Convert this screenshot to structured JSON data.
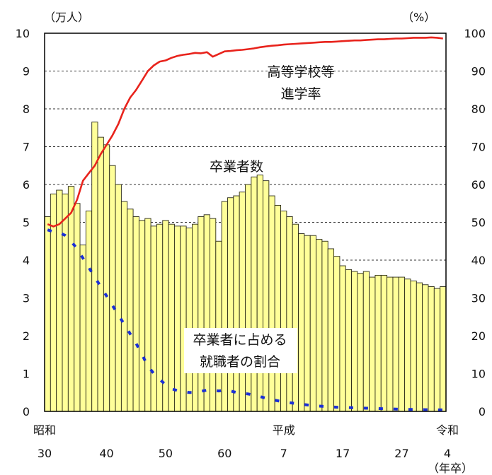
{
  "chart_data": {
    "type": "bar",
    "units": {
      "left": "（万人）",
      "right": "（%）",
      "x": "（年卒）"
    },
    "ylim_left": [
      0,
      10
    ],
    "ylim_right": [
      0,
      100
    ],
    "yticks_left": [
      "0",
      "1",
      "2",
      "3",
      "4",
      "5",
      "6",
      "7",
      "8",
      "9",
      "10"
    ],
    "yticks_right": [
      "0",
      "10",
      "20",
      "30",
      "40",
      "50",
      "60",
      "70",
      "80",
      "90",
      "100"
    ],
    "x_start": 1955,
    "x_end": 2022,
    "xticks": [
      {
        "year": 1955,
        "era": "昭和",
        "label": "30"
      },
      {
        "year": 1965,
        "era": "",
        "label": "40"
      },
      {
        "year": 1975,
        "era": "",
        "label": "50"
      },
      {
        "year": 1985,
        "era": "",
        "label": "60"
      },
      {
        "year": 1995,
        "era": "平成",
        "label": "7"
      },
      {
        "year": 2005,
        "era": "",
        "label": "17"
      },
      {
        "year": 2015,
        "era": "",
        "label": "27"
      },
      {
        "year": 2022,
        "era": "令和",
        "label": "4"
      }
    ],
    "grid": "dashed horizontal",
    "series": [
      {
        "name": "卒業者数",
        "type": "bar",
        "axis": "left",
        "color": "#ffff99",
        "x": [
          1955,
          1956,
          1957,
          1958,
          1959,
          1960,
          1961,
          1962,
          1963,
          1964,
          1965,
          1966,
          1967,
          1968,
          1969,
          1970,
          1971,
          1972,
          1973,
          1974,
          1975,
          1976,
          1977,
          1978,
          1979,
          1980,
          1981,
          1982,
          1983,
          1984,
          1985,
          1986,
          1987,
          1988,
          1989,
          1990,
          1991,
          1992,
          1993,
          1994,
          1995,
          1996,
          1997,
          1998,
          1999,
          2000,
          2001,
          2002,
          2003,
          2004,
          2005,
          2006,
          2007,
          2008,
          2009,
          2010,
          2011,
          2012,
          2013,
          2014,
          2015,
          2016,
          2017,
          2018,
          2019,
          2020,
          2021,
          2022
        ],
        "values": [
          5.15,
          5.75,
          5.85,
          5.75,
          5.95,
          5.5,
          4.4,
          5.3,
          7.65,
          7.25,
          7.05,
          6.5,
          6.0,
          5.55,
          5.35,
          5.15,
          5.05,
          5.1,
          4.9,
          4.95,
          5.05,
          4.95,
          4.9,
          4.9,
          4.85,
          4.95,
          5.15,
          5.2,
          5.1,
          4.5,
          5.55,
          5.65,
          5.7,
          5.8,
          6.0,
          6.2,
          6.25,
          6.1,
          5.7,
          5.45,
          5.3,
          5.15,
          4.95,
          4.7,
          4.65,
          4.65,
          4.55,
          4.5,
          4.3,
          4.1,
          3.85,
          3.75,
          3.7,
          3.65,
          3.7,
          3.55,
          3.6,
          3.6,
          3.55,
          3.55,
          3.55,
          3.5,
          3.45,
          3.4,
          3.35,
          3.3,
          3.25,
          3.3
        ]
      },
      {
        "name": "高等学校等進学率",
        "type": "line",
        "axis": "right",
        "color": "#e8231c",
        "x": [
          1955,
          1956,
          1957,
          1958,
          1959,
          1960,
          1961,
          1962,
          1963,
          1964,
          1965,
          1966,
          1967,
          1968,
          1969,
          1970,
          1971,
          1972,
          1973,
          1974,
          1975,
          1976,
          1977,
          1978,
          1979,
          1980,
          1981,
          1982,
          1983,
          1984,
          1985,
          1986,
          1987,
          1988,
          1989,
          1990,
          1991,
          1992,
          1993,
          1994,
          1995,
          1996,
          1997,
          1998,
          1999,
          2000,
          2001,
          2002,
          2003,
          2004,
          2005,
          2006,
          2007,
          2008,
          2009,
          2010,
          2011,
          2012,
          2013,
          2014,
          2015,
          2016,
          2017,
          2018,
          2019,
          2020,
          2021,
          2022
        ],
        "values": [
          49.5,
          48.9,
          49.5,
          51.0,
          52.5,
          56.0,
          61.0,
          63.0,
          65.0,
          68.0,
          70.5,
          73.0,
          76.0,
          80.0,
          83.0,
          85.0,
          87.5,
          90.0,
          91.5,
          92.5,
          92.8,
          93.5,
          94.0,
          94.3,
          94.5,
          94.8,
          94.7,
          95.0,
          93.8,
          94.5,
          95.2,
          95.3,
          95.5,
          95.6,
          95.8,
          96.0,
          96.3,
          96.5,
          96.7,
          96.8,
          97.0,
          97.1,
          97.2,
          97.3,
          97.4,
          97.5,
          97.6,
          97.7,
          97.7,
          97.8,
          97.9,
          98.0,
          98.1,
          98.1,
          98.2,
          98.3,
          98.4,
          98.4,
          98.5,
          98.6,
          98.6,
          98.7,
          98.8,
          98.8,
          98.8,
          98.9,
          98.8,
          98.6
        ]
      },
      {
        "name": "卒業者に占める就職者の割合",
        "type": "line",
        "axis": "right",
        "style": "dashed",
        "color": "#1a2fd6",
        "x": [
          1955,
          1956,
          1957,
          1958,
          1959,
          1960,
          1961,
          1962,
          1963,
          1964,
          1965,
          1966,
          1967,
          1968,
          1969,
          1970,
          1971,
          1972,
          1973,
          1974,
          1975,
          1976,
          1977,
          1978,
          1979,
          1980,
          1981,
          1982,
          1983,
          1984,
          1985,
          1986,
          1987,
          1988,
          1989,
          1990,
          1991,
          1992,
          1993,
          1994,
          1995,
          1996,
          1997,
          1998,
          1999,
          2000,
          2001,
          2002,
          2003,
          2004,
          2005,
          2006,
          2007,
          2008,
          2009,
          2010,
          2011,
          2012,
          2013,
          2014,
          2015,
          2016,
          2017,
          2018,
          2019,
          2020,
          2021,
          2022
        ],
        "values": [
          48,
          47.5,
          47.3,
          46.5,
          45,
          43,
          40.5,
          38,
          35.5,
          33,
          30.5,
          28,
          25.5,
          23,
          20.5,
          18,
          15,
          12,
          10,
          8.5,
          7,
          6,
          5.5,
          5.3,
          5,
          5,
          5.3,
          5.6,
          5.6,
          5.4,
          5.6,
          5.4,
          5,
          4.8,
          4.6,
          4.3,
          3.9,
          3.5,
          3.1,
          2.8,
          2.5,
          2.3,
          2.1,
          1.9,
          1.7,
          1.5,
          1.4,
          1.3,
          1.2,
          1.1,
          1,
          1,
          0.95,
          0.9,
          0.85,
          0.8,
          0.75,
          0.7,
          0.65,
          0.6,
          0.55,
          0.5,
          0.5,
          0.5,
          0.45,
          0.45,
          0.4,
          0.4
        ]
      }
    ],
    "annotations": [
      {
        "target": "高等学校等進学率",
        "lines": [
          "高等学校等",
          "進学率"
        ]
      },
      {
        "target": "卒業者数",
        "lines": [
          "卒業者数"
        ]
      },
      {
        "target": "卒業者に占める就職者の割合",
        "lines": [
          "卒業者に占める",
          "就職者の割合"
        ]
      }
    ]
  }
}
